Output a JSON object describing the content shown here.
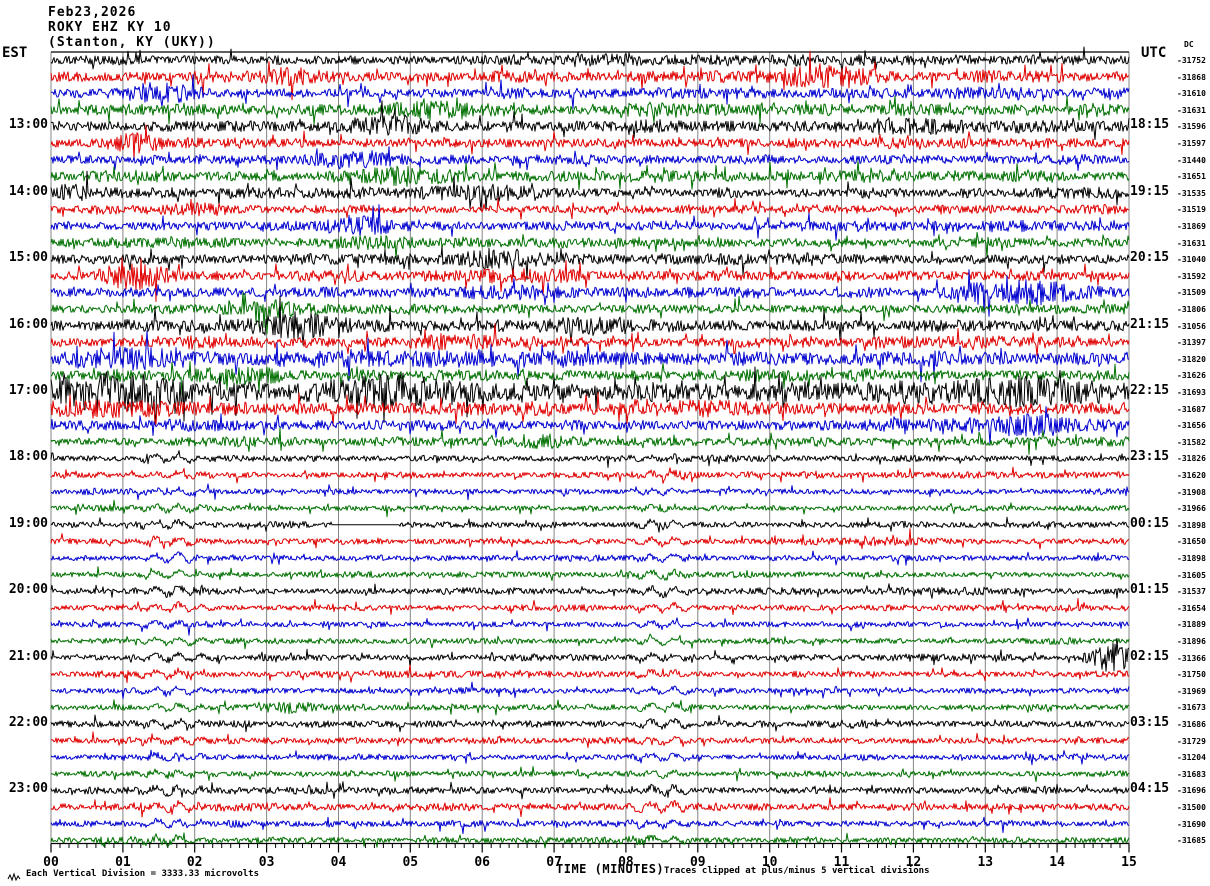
{
  "title": {
    "date": "Feb23,2026",
    "station": "ROKY EHZ KY 10",
    "location": "(Stanton, KY (UKY))"
  },
  "axes": {
    "left_header": "EST",
    "right_header": "UTC",
    "dc_header": "DC",
    "xlabel": "TIME (MINUTES)",
    "x_ticks": [
      "00",
      "01",
      "02",
      "03",
      "04",
      "05",
      "06",
      "07",
      "08",
      "09",
      "10",
      "11",
      "12",
      "13",
      "14",
      "15"
    ]
  },
  "footer": {
    "scale_note": "Each Vertical Division = 3333.33 microvolts",
    "clip_note": "Traces clipped at plus/minus 5 vertical divisions",
    "icon": "waveform-icon"
  },
  "colors": {
    "black": "#000000",
    "red": "#e00000",
    "blue": "#0000d0",
    "green": "#007000",
    "grid": "#848484",
    "axis": "#000000"
  },
  "chart_data": {
    "type": "line",
    "kind": "helicorder",
    "minutes_per_line": 15,
    "x_range": [
      0,
      15
    ],
    "grid": "vertical-every-minute",
    "rows": [
      {
        "est": "",
        "utc": "",
        "color": "black",
        "dc": -31752,
        "amp": 3.2
      },
      {
        "est": "",
        "utc": "",
        "color": "red",
        "dc": -31868,
        "amp": 3.4,
        "bursts": [
          [
            3.3,
            0.4,
            2.0
          ],
          [
            10.7,
            0.7,
            2.6
          ]
        ]
      },
      {
        "est": "",
        "utc": "",
        "color": "blue",
        "dc": -31610,
        "amp": 3.2,
        "bursts": [
          [
            1.5,
            0.5,
            2.2
          ]
        ]
      },
      {
        "est": "",
        "utc": "",
        "color": "green",
        "dc": -31631,
        "amp": 3.6,
        "bursts": [
          [
            5.3,
            0.8,
            1.8
          ]
        ]
      },
      {
        "est": "13:00",
        "utc": "18:15",
        "color": "black",
        "dc": -31596,
        "amp": 3.6,
        "bursts": [
          [
            4.7,
            0.5,
            2.2
          ],
          [
            11.9,
            0.9,
            1.7
          ]
        ]
      },
      {
        "est": "",
        "utc": "",
        "color": "red",
        "dc": -31597,
        "amp": 3.2,
        "bursts": [
          [
            1.2,
            0.4,
            2.2
          ]
        ]
      },
      {
        "est": "",
        "utc": "",
        "color": "blue",
        "dc": -31440,
        "amp": 3.0,
        "bursts": [
          [
            4.2,
            0.5,
            2.0
          ]
        ]
      },
      {
        "est": "",
        "utc": "",
        "color": "green",
        "dc": -31651,
        "amp": 3.4,
        "bursts": [
          [
            4.9,
            0.7,
            2.0
          ]
        ]
      },
      {
        "est": "14:00",
        "utc": "19:15",
        "color": "black",
        "dc": -31535,
        "amp": 3.2,
        "bursts": [
          [
            0.3,
            0.3,
            2.0
          ],
          [
            5.9,
            0.9,
            1.8
          ]
        ]
      },
      {
        "est": "",
        "utc": "",
        "color": "red",
        "dc": -31519,
        "amp": 2.8,
        "bursts": [
          [
            2.1,
            0.4,
            1.8
          ]
        ]
      },
      {
        "est": "",
        "utc": "",
        "color": "blue",
        "dc": -31869,
        "amp": 3.0,
        "bursts": [
          [
            4.3,
            0.5,
            2.4
          ]
        ]
      },
      {
        "est": "",
        "utc": "",
        "color": "green",
        "dc": -31631,
        "amp": 3.0,
        "bursts": [
          [
            4.5,
            0.6,
            1.8
          ]
        ]
      },
      {
        "est": "15:00",
        "utc": "20:15",
        "color": "black",
        "dc": -31040,
        "amp": 3.4,
        "bursts": [
          [
            6.3,
            0.7,
            1.8
          ]
        ]
      },
      {
        "est": "",
        "utc": "",
        "color": "red",
        "dc": -31592,
        "amp": 3.2,
        "bursts": [
          [
            1.15,
            0.45,
            3.0
          ],
          [
            6.5,
            0.8,
            1.7
          ]
        ]
      },
      {
        "est": "",
        "utc": "",
        "color": "blue",
        "dc": -31509,
        "amp": 3.4,
        "bursts": [
          [
            6.4,
            0.8,
            1.6
          ],
          [
            13.5,
            0.7,
            2.8
          ]
        ]
      },
      {
        "est": "",
        "utc": "",
        "color": "green",
        "dc": -31806,
        "amp": 3.0,
        "bursts": [
          [
            3.1,
            0.6,
            1.8
          ]
        ]
      },
      {
        "est": "16:00",
        "utc": "21:15",
        "color": "black",
        "dc": -31056,
        "amp": 3.8,
        "bursts": [
          [
            3.4,
            0.5,
            2.4
          ],
          [
            7.6,
            0.6,
            1.8
          ]
        ]
      },
      {
        "est": "",
        "utc": "",
        "color": "red",
        "dc": -31397,
        "amp": 3.2,
        "bursts": [
          [
            5.6,
            0.6,
            1.8
          ]
        ]
      },
      {
        "est": "",
        "utc": "",
        "color": "blue",
        "dc": -31820,
        "amp": 4.2,
        "bursts": [
          [
            1.0,
            0.8,
            1.8
          ],
          [
            6.0,
            2.5,
            1.4
          ]
        ]
      },
      {
        "est": "",
        "utc": "",
        "color": "green",
        "dc": -31626,
        "amp": 3.4,
        "bursts": [
          [
            2.5,
            0.6,
            1.8
          ]
        ]
      },
      {
        "est": "17:00",
        "utc": "22:15",
        "color": "black",
        "dc": -31693,
        "amp": 6.0,
        "bursts": [
          [
            0.9,
            1.2,
            2.0
          ],
          [
            4.8,
            0.7,
            1.8
          ],
          [
            13.3,
            0.9,
            1.8
          ]
        ],
        "spikes": [
          [
            1.45,
            24
          ]
        ]
      },
      {
        "est": "",
        "utc": "",
        "color": "red",
        "dc": -31687,
        "amp": 4.0,
        "bursts": [
          [
            0.5,
            1.0,
            1.6
          ],
          [
            9.0,
            0.8,
            1.5
          ]
        ],
        "spikes": [
          [
            1.45,
            12
          ]
        ]
      },
      {
        "est": "",
        "utc": "",
        "color": "blue",
        "dc": -31656,
        "amp": 3.4,
        "bursts": [
          [
            13.6,
            0.8,
            2.4
          ]
        ]
      },
      {
        "est": "",
        "utc": "",
        "color": "green",
        "dc": -31582,
        "amp": 2.8,
        "bursts": [
          [
            6.8,
            0.6,
            1.6
          ]
        ]
      },
      {
        "est": "18:00",
        "utc": "23:15",
        "color": "black",
        "dc": -31826,
        "amp": 2.0,
        "wiggles": [
          [
            1.05,
            2.35,
            3.2
          ],
          [
            7.95,
            9.05,
            2.2
          ]
        ]
      },
      {
        "est": "",
        "utc": "",
        "color": "red",
        "dc": -31620,
        "amp": 2.0,
        "wiggles": [
          [
            1.05,
            2.35,
            3.0
          ],
          [
            7.95,
            9.05,
            2.2
          ]
        ]
      },
      {
        "est": "",
        "utc": "",
        "color": "blue",
        "dc": -31908,
        "amp": 1.7,
        "wiggles": [
          [
            1.05,
            2.35,
            2.8
          ],
          [
            7.95,
            9.05,
            2.0
          ]
        ]
      },
      {
        "est": "",
        "utc": "",
        "color": "green",
        "dc": -31966,
        "amp": 1.7,
        "wiggles": [
          [
            1.05,
            2.35,
            2.8
          ],
          [
            7.95,
            9.05,
            2.0
          ]
        ]
      },
      {
        "est": "19:00",
        "utc": "00:15",
        "color": "black",
        "dc": -31898,
        "amp": 2.0,
        "wiggles": [
          [
            1.05,
            2.35,
            3.6
          ],
          [
            7.95,
            9.05,
            3.4
          ]
        ],
        "flats": [
          [
            3.9,
            4.85
          ]
        ]
      },
      {
        "est": "",
        "utc": "",
        "color": "red",
        "dc": -31650,
        "amp": 1.9,
        "wiggles": [
          [
            1.05,
            2.35,
            3.4
          ],
          [
            7.95,
            9.05,
            3.2
          ]
        ]
      },
      {
        "est": "",
        "utc": "",
        "color": "blue",
        "dc": -31898,
        "amp": 1.8,
        "wiggles": [
          [
            1.05,
            2.35,
            3.0
          ],
          [
            7.95,
            9.05,
            3.0
          ]
        ]
      },
      {
        "est": "",
        "utc": "",
        "color": "green",
        "dc": -31605,
        "amp": 1.8,
        "wiggles": [
          [
            1.05,
            2.35,
            3.2
          ],
          [
            7.95,
            9.05,
            3.4
          ]
        ]
      },
      {
        "est": "20:00",
        "utc": "01:15",
        "color": "black",
        "dc": -31537,
        "amp": 2.0,
        "wiggles": [
          [
            1.05,
            2.35,
            3.6
          ],
          [
            7.95,
            9.05,
            3.6
          ]
        ]
      },
      {
        "est": "",
        "utc": "",
        "color": "red",
        "dc": -31654,
        "amp": 1.9,
        "wiggles": [
          [
            1.05,
            2.35,
            3.4
          ],
          [
            7.95,
            9.05,
            3.4
          ]
        ]
      },
      {
        "est": "",
        "utc": "",
        "color": "blue",
        "dc": -31889,
        "amp": 1.8,
        "wiggles": [
          [
            1.05,
            2.35,
            3.0
          ],
          [
            7.95,
            9.05,
            3.2
          ]
        ]
      },
      {
        "est": "",
        "utc": "",
        "color": "green",
        "dc": -31896,
        "amp": 1.8,
        "wiggles": [
          [
            1.05,
            2.35,
            3.2
          ],
          [
            7.95,
            9.05,
            3.0
          ]
        ]
      },
      {
        "est": "21:00",
        "utc": "02:15",
        "color": "black",
        "dc": -31366,
        "amp": 2.0,
        "wiggles": [
          [
            1.05,
            2.35,
            3.4
          ],
          [
            7.95,
            9.05,
            3.4
          ]
        ],
        "bursts": [
          [
            14.78,
            0.3,
            5.0
          ]
        ]
      },
      {
        "est": "",
        "utc": "",
        "color": "red",
        "dc": -31750,
        "amp": 1.9,
        "wiggles": [
          [
            1.05,
            2.35,
            3.6
          ],
          [
            7.95,
            9.05,
            3.2
          ]
        ]
      },
      {
        "est": "",
        "utc": "",
        "color": "blue",
        "dc": -31969,
        "amp": 1.8,
        "wiggles": [
          [
            1.05,
            2.35,
            3.0
          ],
          [
            7.95,
            9.05,
            3.0
          ]
        ]
      },
      {
        "est": "",
        "utc": "",
        "color": "green",
        "dc": -31673,
        "amp": 1.8,
        "wiggles": [
          [
            1.05,
            2.35,
            2.8
          ],
          [
            7.95,
            9.05,
            2.8
          ]
        ],
        "bursts": [
          [
            3.3,
            0.5,
            2.2
          ]
        ]
      },
      {
        "est": "22:00",
        "utc": "03:15",
        "color": "black",
        "dc": -31686,
        "amp": 2.2,
        "wiggles": [
          [
            1.05,
            2.35,
            3.2
          ],
          [
            7.95,
            9.05,
            3.0
          ]
        ]
      },
      {
        "est": "",
        "utc": "",
        "color": "red",
        "dc": -31729,
        "amp": 2.0,
        "wiggles": [
          [
            1.05,
            2.35,
            3.4
          ],
          [
            7.95,
            9.05,
            3.0
          ]
        ]
      },
      {
        "est": "",
        "utc": "",
        "color": "blue",
        "dc": -31204,
        "amp": 1.8,
        "wiggles": [
          [
            1.05,
            2.35,
            2.8
          ],
          [
            7.95,
            9.05,
            2.8
          ]
        ]
      },
      {
        "est": "",
        "utc": "",
        "color": "green",
        "dc": -31683,
        "amp": 1.8,
        "wiggles": [
          [
            1.05,
            2.35,
            2.8
          ],
          [
            7.95,
            9.05,
            2.6
          ]
        ]
      },
      {
        "est": "23:00",
        "utc": "04:15",
        "color": "black",
        "dc": -31696,
        "amp": 2.2,
        "wiggles": [
          [
            1.05,
            2.35,
            3.6
          ],
          [
            7.95,
            9.05,
            3.2
          ]
        ]
      },
      {
        "est": "",
        "utc": "",
        "color": "red",
        "dc": -31500,
        "amp": 2.4,
        "wiggles": [
          [
            1.05,
            2.35,
            3.8
          ],
          [
            7.95,
            9.05,
            3.4
          ]
        ]
      },
      {
        "est": "",
        "utc": "",
        "color": "blue",
        "dc": -31690,
        "amp": 2.0,
        "wiggles": [
          [
            1.05,
            2.35,
            3.4
          ],
          [
            7.95,
            9.05,
            3.0
          ]
        ]
      },
      {
        "est": "",
        "utc": "",
        "color": "green",
        "dc": -31685,
        "amp": 1.9,
        "wiggles": [
          [
            1.05,
            2.35,
            3.2
          ],
          [
            7.95,
            9.05,
            2.8
          ]
        ]
      }
    ]
  }
}
